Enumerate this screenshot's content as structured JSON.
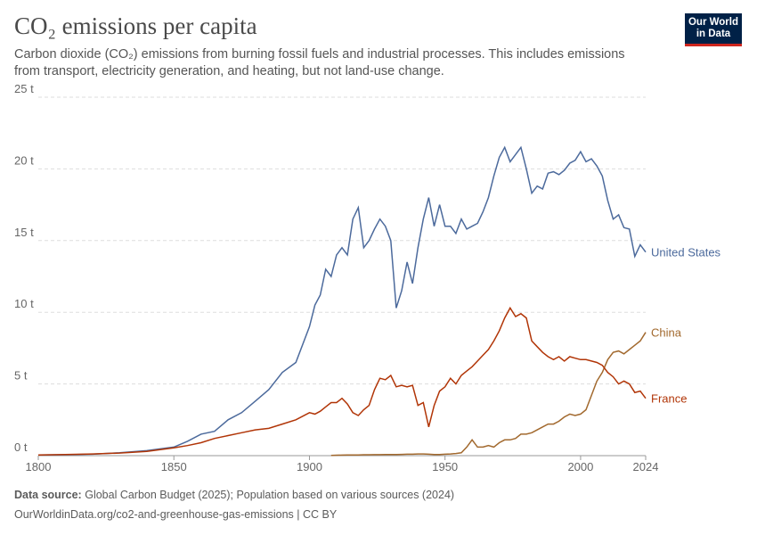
{
  "chart_data": {
    "type": "line",
    "title": "CO₂ emissions per capita",
    "subtitle": "Carbon dioxide (CO₂) emissions from burning fossil fuels and industrial processes. This includes emissions from transport, electricity generation, and heating, but not land-use change.",
    "logo": [
      "Our World",
      "in Data"
    ],
    "source_label": "Data source:",
    "source": "Global Carbon Budget (2025); Population based on various sources (2024)",
    "url": "OurWorldinData.org/co2-and-greenhouse-gas-emissions | CC BY",
    "xlim": [
      1800,
      2024
    ],
    "xticks": [
      1800,
      1850,
      1900,
      1950,
      2000,
      2024
    ],
    "ylim": [
      0,
      25
    ],
    "yticks": [
      {
        "value": 0,
        "label": "0 t"
      },
      {
        "value": 5,
        "label": "5 t"
      },
      {
        "value": 10,
        "label": "10 t"
      },
      {
        "value": 15,
        "label": "15 t"
      },
      {
        "value": 20,
        "label": "20 t"
      },
      {
        "value": 25,
        "label": "25 t"
      }
    ],
    "grid": true,
    "x": [
      1800,
      1810,
      1820,
      1830,
      1840,
      1850,
      1855,
      1860,
      1865,
      1870,
      1875,
      1880,
      1885,
      1890,
      1895,
      1900,
      1902,
      1904,
      1906,
      1908,
      1910,
      1912,
      1914,
      1916,
      1918,
      1920,
      1922,
      1924,
      1926,
      1928,
      1930,
      1932,
      1934,
      1936,
      1938,
      1940,
      1942,
      1944,
      1946,
      1948,
      1950,
      1952,
      1954,
      1956,
      1958,
      1960,
      1962,
      1964,
      1966,
      1968,
      1970,
      1972,
      1974,
      1976,
      1978,
      1980,
      1982,
      1984,
      1986,
      1988,
      1990,
      1992,
      1994,
      1996,
      1998,
      2000,
      2002,
      2004,
      2006,
      2008,
      2010,
      2012,
      2014,
      2016,
      2018,
      2020,
      2022,
      2024
    ],
    "series": [
      {
        "name": "United States",
        "color": "#4c6a9c",
        "values": [
          0.05,
          0.06,
          0.1,
          0.2,
          0.35,
          0.6,
          1.0,
          1.5,
          1.7,
          2.5,
          3.0,
          3.8,
          4.6,
          5.8,
          6.5,
          9.0,
          10.5,
          11.2,
          13.0,
          12.5,
          14.0,
          14.5,
          14.0,
          16.5,
          17.3,
          14.5,
          15.0,
          15.8,
          16.5,
          16.0,
          15.0,
          10.3,
          11.5,
          13.5,
          12.0,
          14.5,
          16.5,
          18.0,
          16.0,
          17.5,
          16.0,
          16.0,
          15.5,
          16.5,
          15.8,
          16.0,
          16.2,
          17.0,
          18.0,
          19.5,
          20.8,
          21.5,
          20.5,
          21.0,
          21.5,
          20.0,
          18.3,
          18.8,
          18.6,
          19.7,
          19.8,
          19.6,
          19.9,
          20.4,
          20.6,
          21.2,
          20.5,
          20.7,
          20.2,
          19.5,
          17.8,
          16.5,
          16.8,
          15.9,
          15.8,
          13.9,
          14.7,
          14.2
        ]
      },
      {
        "name": "China",
        "color": "#a2692e",
        "values": [
          null,
          null,
          null,
          null,
          null,
          null,
          null,
          null,
          null,
          null,
          null,
          null,
          null,
          null,
          null,
          null,
          null,
          null,
          null,
          0.02,
          0.03,
          0.04,
          0.05,
          0.05,
          0.05,
          0.06,
          0.06,
          0.07,
          0.07,
          0.08,
          0.08,
          0.08,
          0.09,
          0.1,
          0.1,
          0.12,
          0.12,
          0.1,
          0.08,
          0.08,
          0.1,
          0.12,
          0.15,
          0.2,
          0.6,
          1.1,
          0.6,
          0.6,
          0.7,
          0.6,
          0.9,
          1.1,
          1.1,
          1.2,
          1.5,
          1.5,
          1.6,
          1.8,
          2.0,
          2.2,
          2.2,
          2.4,
          2.7,
          2.9,
          2.8,
          2.9,
          3.2,
          4.2,
          5.2,
          5.8,
          6.7,
          7.2,
          7.3,
          7.1,
          7.4,
          7.7,
          8.0,
          8.6
        ]
      },
      {
        "name": "France",
        "color": "#b13507",
        "values": [
          0.05,
          0.08,
          0.12,
          0.18,
          0.3,
          0.55,
          0.7,
          0.9,
          1.2,
          1.4,
          1.6,
          1.8,
          1.9,
          2.2,
          2.5,
          3.0,
          2.9,
          3.1,
          3.4,
          3.7,
          3.7,
          4.0,
          3.6,
          3.0,
          2.8,
          3.2,
          3.5,
          4.6,
          5.4,
          5.3,
          5.6,
          4.8,
          4.9,
          4.8,
          4.9,
          3.5,
          3.7,
          2.0,
          3.5,
          4.5,
          4.8,
          5.4,
          5.0,
          5.6,
          5.9,
          6.2,
          6.6,
          7.0,
          7.4,
          8.0,
          8.7,
          9.6,
          10.3,
          9.7,
          9.9,
          9.6,
          8.0,
          7.6,
          7.2,
          6.9,
          6.7,
          6.9,
          6.6,
          6.9,
          6.8,
          6.7,
          6.7,
          6.6,
          6.5,
          6.3,
          5.8,
          5.5,
          5.0,
          5.2,
          5.0,
          4.4,
          4.5,
          4.0
        ]
      }
    ]
  }
}
